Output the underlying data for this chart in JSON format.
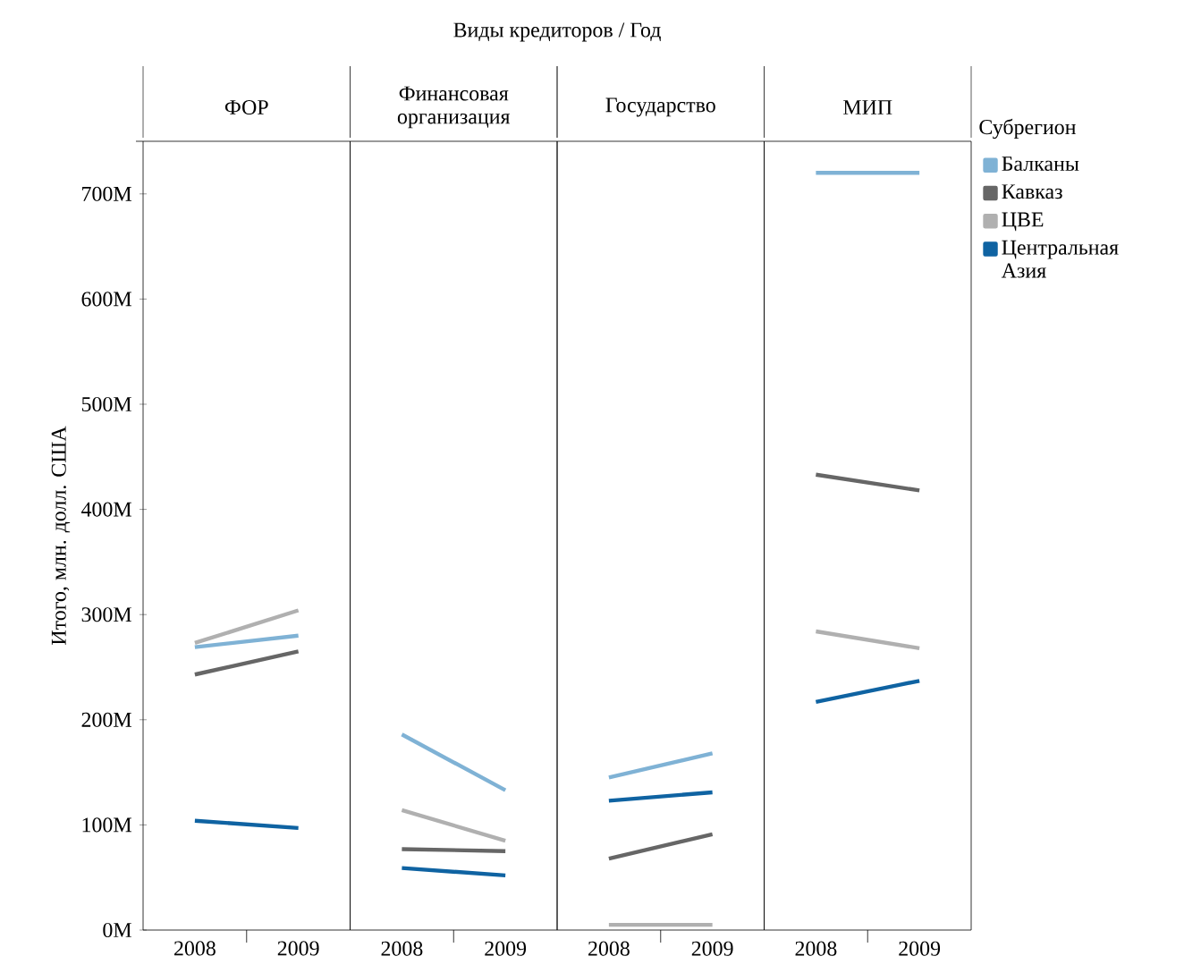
{
  "chart_data": [
    {
      "type": "line",
      "title": "ФОР",
      "annotations": [
        "Виды кредиторов / Год"
      ],
      "ylabel": "Итого, млн. долл. США",
      "categories": [
        "2008",
        "2009"
      ],
      "ylim": [
        0,
        750
      ],
      "yticks": [
        {
          "value": 0,
          "label": "0M"
        },
        {
          "value": 100,
          "label": "100M"
        },
        {
          "value": 200,
          "label": "200M"
        },
        {
          "value": 300,
          "label": "300M"
        },
        {
          "value": 400,
          "label": "400M"
        },
        {
          "value": 500,
          "label": "500M"
        },
        {
          "value": 600,
          "label": "600M"
        },
        {
          "value": 700,
          "label": "700M"
        }
      ],
      "grid": false,
      "legend": false,
      "series": [
        {
          "color": "#7fb2d5",
          "values": [
            269,
            280
          ]
        },
        {
          "color": "#666666",
          "values": [
            243,
            265
          ]
        },
        {
          "color": "#b0b0b0",
          "values": [
            273,
            304
          ]
        },
        {
          "color": "#0f63a2",
          "values": [
            104,
            97
          ]
        }
      ]
    },
    {
      "type": "line",
      "title": "Финансовая организация",
      "categories": [
        "2008",
        "2009"
      ],
      "ylim": [
        0,
        750
      ],
      "tick_labels": "x",
      "grid": false,
      "legend": false,
      "series": [
        {
          "color": "#7fb2d5",
          "values": [
            186,
            133
          ]
        },
        {
          "color": "#666666",
          "values": [
            77,
            75
          ]
        },
        {
          "color": "#b0b0b0",
          "values": [
            114,
            85
          ]
        },
        {
          "color": "#0f63a2",
          "values": [
            59,
            52
          ]
        }
      ]
    },
    {
      "type": "line",
      "title": "Государство",
      "categories": [
        "2008",
        "2009"
      ],
      "ylim": [
        0,
        750
      ],
      "tick_labels": "x",
      "grid": false,
      "legend": false,
      "series": [
        {
          "color": "#7fb2d5",
          "values": [
            145,
            168
          ]
        },
        {
          "color": "#666666",
          "values": [
            68,
            91
          ]
        },
        {
          "color": "#b0b0b0",
          "values": [
            5,
            5
          ]
        },
        {
          "color": "#0f63a2",
          "values": [
            123,
            131
          ]
        }
      ]
    },
    {
      "type": "line",
      "title": "МИП",
      "categories": [
        "2008",
        "2009"
      ],
      "ylim": [
        0,
        750
      ],
      "tick_labels": "x",
      "grid": false,
      "legend": "right",
      "legend_title": "Субрегион",
      "series": [
        {
          "name": "Балканы",
          "color": "#7fb2d5",
          "values": [
            720,
            720
          ]
        },
        {
          "name": "Кавказ",
          "color": "#666666",
          "values": [
            433,
            418
          ]
        },
        {
          "name": "ЦВЕ",
          "color": "#b0b0b0",
          "values": [
            284,
            268
          ]
        },
        {
          "name": "Центральная Азия",
          "color": "#0f63a2",
          "values": [
            217,
            237
          ]
        }
      ]
    }
  ]
}
